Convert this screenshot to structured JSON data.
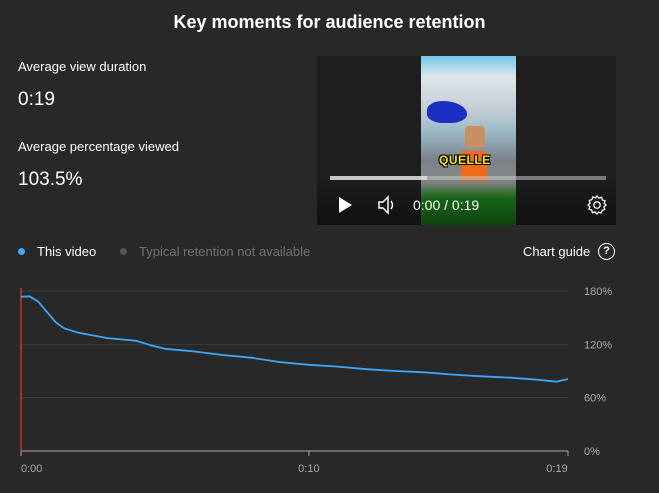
{
  "title": "Key moments for audience retention",
  "stats": [
    {
      "label": "Average view duration",
      "value": "0:19"
    },
    {
      "label": "Average percentage viewed",
      "value": "103.5%"
    }
  ],
  "player": {
    "caption_overlay": "QUELLE",
    "time_display": "0:00 / 0:19",
    "progress_percent": 35,
    "icons": [
      "play-icon",
      "volume-icon",
      "settings-gear-icon"
    ]
  },
  "legend": [
    {
      "label": "This video",
      "color": "#3ea6ff",
      "active": true
    },
    {
      "label": "Typical retention not available",
      "color": "#555555",
      "active": false
    }
  ],
  "chart_guide": {
    "label": "Chart guide",
    "icon": "help-circle-icon",
    "icon_text": "?"
  },
  "chart_data": {
    "type": "line",
    "xlabel": "",
    "ylabel": "",
    "xlim": [
      0,
      19
    ],
    "ylim": [
      0,
      180
    ],
    "x_ticks": [
      {
        "value": 0,
        "label": "0:00"
      },
      {
        "value": 10,
        "label": "0:10"
      },
      {
        "value": 19,
        "label": "0:19"
      }
    ],
    "y_ticks": [
      {
        "value": 0,
        "label": "0%"
      },
      {
        "value": 60,
        "label": "60%"
      },
      {
        "value": 120,
        "label": "120%"
      },
      {
        "value": 180,
        "label": "180%"
      }
    ],
    "grid": true,
    "line_color": "#3ea6ff",
    "marker_color": "#c0392b",
    "series": [
      {
        "name": "This video",
        "x": [
          0,
          0.3,
          0.6,
          1.2,
          1.5,
          2,
          3,
          4,
          4.5,
          5,
          6,
          7,
          8,
          9,
          10,
          11,
          12,
          13,
          14,
          15,
          16,
          17,
          18,
          18.6,
          19
        ],
        "y": [
          173.5,
          174,
          168,
          145,
          138,
          133,
          127,
          124,
          119,
          115,
          112,
          108,
          105,
          100,
          97,
          95,
          92,
          90,
          88.5,
          86,
          84,
          82.5,
          80,
          78,
          81
        ]
      }
    ]
  }
}
